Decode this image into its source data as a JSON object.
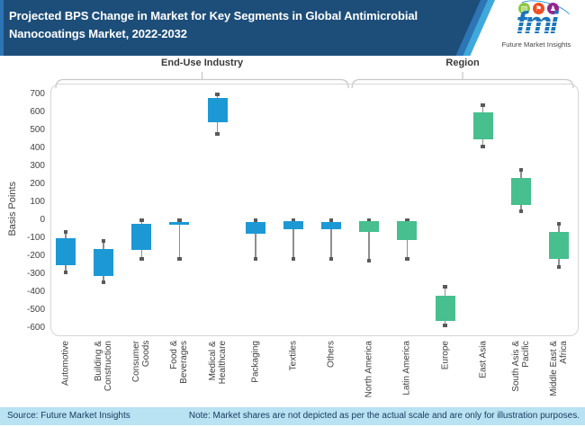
{
  "header": {
    "title_line1": "Projected BPS Change in Market for Key Segments in Global Antimicrobial",
    "title_line2": "Nanocoatings Market, 2022-2032",
    "logo": {
      "brand": "fmi",
      "caption": "Future Market Insights",
      "icons": [
        {
          "name": "chart-bubble-icon",
          "glyph": "▥",
          "color": "#8dc63f"
        },
        {
          "name": "flag-bearer-icon",
          "glyph": "⚑",
          "color": "#f04e23"
        },
        {
          "name": "person-icon",
          "glyph": "♟",
          "color": "#92278f"
        }
      ],
      "brand_color": "#1b75bb"
    }
  },
  "chart_data": {
    "type": "candlestick",
    "title": "Projected BPS Change in Market for Key Segments in Global Antimicrobial Nanocoatings Market, 2022-2032",
    "ylabel": "Basis Points",
    "unit": "BPS",
    "ylim": [
      -600,
      700
    ],
    "yticks": [
      700,
      600,
      500,
      400,
      300,
      200,
      100,
      0,
      -100,
      -200,
      -300,
      -400,
      -500,
      -600
    ],
    "grid": false,
    "legend": null,
    "groups": [
      {
        "label": "End-Use Industry",
        "from": 0,
        "to": 7,
        "color": "#1c99d5"
      },
      {
        "label": "Region",
        "from": 8,
        "to": 13,
        "color": "#47bf8e"
      }
    ],
    "whisker_color": "#8f8f8f",
    "series": [
      {
        "category": "Automotive",
        "high": -65,
        "box_top": -100,
        "box_bottom": -250,
        "low": -290
      },
      {
        "category": "Building &\nConstruction",
        "high": -115,
        "box_top": -160,
        "box_bottom": -310,
        "low": -345
      },
      {
        "category": "Consumer\nGoods",
        "high": 0,
        "box_top": -20,
        "box_bottom": -165,
        "low": -215
      },
      {
        "category": "Food &\nBeverages",
        "high": 0,
        "box_top": -10,
        "box_bottom": -20,
        "low": -215
      },
      {
        "category": "Medical &\nHealthcare",
        "high": 700,
        "box_top": 680,
        "box_bottom": 545,
        "low": 480
      },
      {
        "category": "Packaging",
        "high": 0,
        "box_top": -10,
        "box_bottom": -75,
        "low": -215
      },
      {
        "category": "Textiles",
        "high": 0,
        "box_top": -5,
        "box_bottom": -50,
        "low": -215
      },
      {
        "category": "Others",
        "high": 0,
        "box_top": -10,
        "box_bottom": -50,
        "low": -215
      },
      {
        "category": "North America",
        "high": 0,
        "box_top": -5,
        "box_bottom": -65,
        "low": -225
      },
      {
        "category": "Latin America",
        "high": 0,
        "box_top": -5,
        "box_bottom": -110,
        "low": -215
      },
      {
        "category": "Europe",
        "high": -370,
        "box_top": -420,
        "box_bottom": -560,
        "low": -585
      },
      {
        "category": "East Asia",
        "high": 640,
        "box_top": 600,
        "box_bottom": 450,
        "low": 410
      },
      {
        "category": "South Asis &\nPacific",
        "high": 280,
        "box_top": 235,
        "box_bottom": 85,
        "low": 50
      },
      {
        "category": "Middle East &\nAfrica",
        "high": -20,
        "box_top": -65,
        "box_bottom": -215,
        "low": -260
      }
    ]
  },
  "footer": {
    "source": "Source: Future Market Insights",
    "note": "Note: Market shares are not depicted as per the actual scale and are only for illustration purposes."
  },
  "theme": {
    "header_navy": "#1d4e79",
    "stripe_blue": "#2e75b6",
    "stripe_cyan": "#3fa9dc",
    "footer_band": "#b9e2f2",
    "footer_text": "#17375e"
  }
}
